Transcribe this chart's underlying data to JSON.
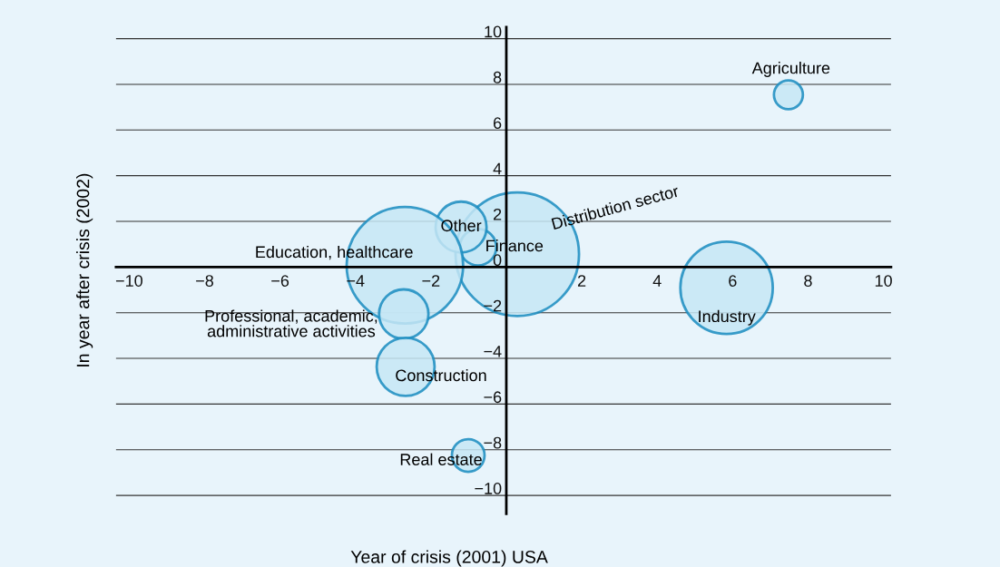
{
  "chart_data": {
    "type": "bubble",
    "xlabel": "Year of crisis (2001) USA",
    "ylabel": "In year after crisis (2002)",
    "series": [
      {
        "name": "Agriculture",
        "color": "#c6e6f5",
        "x": [
          7.48
        ],
        "values": [
          7.54
        ],
        "sizes": [
          0.055
        ]
      },
      {
        "name": "Industry",
        "color": "#c6e6f5",
        "x": [
          5.84
        ],
        "values": [
          -0.91
        ],
        "sizes": [
          0.56
        ]
      },
      {
        "name": "Distribution sector",
        "color": "#c6e6f5",
        "x": [
          0.29
        ],
        "values": [
          0.56
        ],
        "sizes": [
          1
        ]
      },
      {
        "name": "Finance",
        "color": "#c6e6f5",
        "x": [
          -0.75
        ],
        "values": [
          0.87
        ],
        "sizes": [
          0.087
        ]
      },
      {
        "name": "Other",
        "color": "#c6e6f5",
        "x": [
          -1.2
        ],
        "values": [
          1.75
        ],
        "sizes": [
          0.17
        ]
      },
      {
        "name": "Education, healthcare",
        "color": "#c6e6f5",
        "x": [
          -2.69
        ],
        "values": [
          0.08
        ],
        "sizes": [
          0.89
        ]
      },
      {
        "name": "Professional, academic,\nadministrative activities",
        "color": "#c6e6f5",
        "x": [
          -2.72
        ],
        "values": [
          -2.06
        ],
        "sizes": [
          0.16
        ]
      },
      {
        "name": "Construction",
        "color": "#c6e6f5",
        "x": [
          -2.67
        ],
        "values": [
          -4.37
        ],
        "sizes": [
          0.22
        ]
      },
      {
        "name": "Real estate",
        "color": "#c6e6f5",
        "x": [
          -1.01
        ],
        "values": [
          -8.25
        ],
        "sizes": [
          0.07
        ]
      }
    ],
    "xlim": [
      -10.35,
      10.2
    ],
    "ylim": [
      -10.8,
      10.5
    ],
    "xticks": [
      -10,
      -8,
      -6,
      -4,
      -2,
      2,
      4,
      6,
      8,
      10
    ],
    "yticks": [
      -10,
      -8,
      -6,
      -4,
      -2,
      0,
      2,
      4,
      6,
      8,
      10
    ],
    "grid": "y",
    "legend": false
  }
}
